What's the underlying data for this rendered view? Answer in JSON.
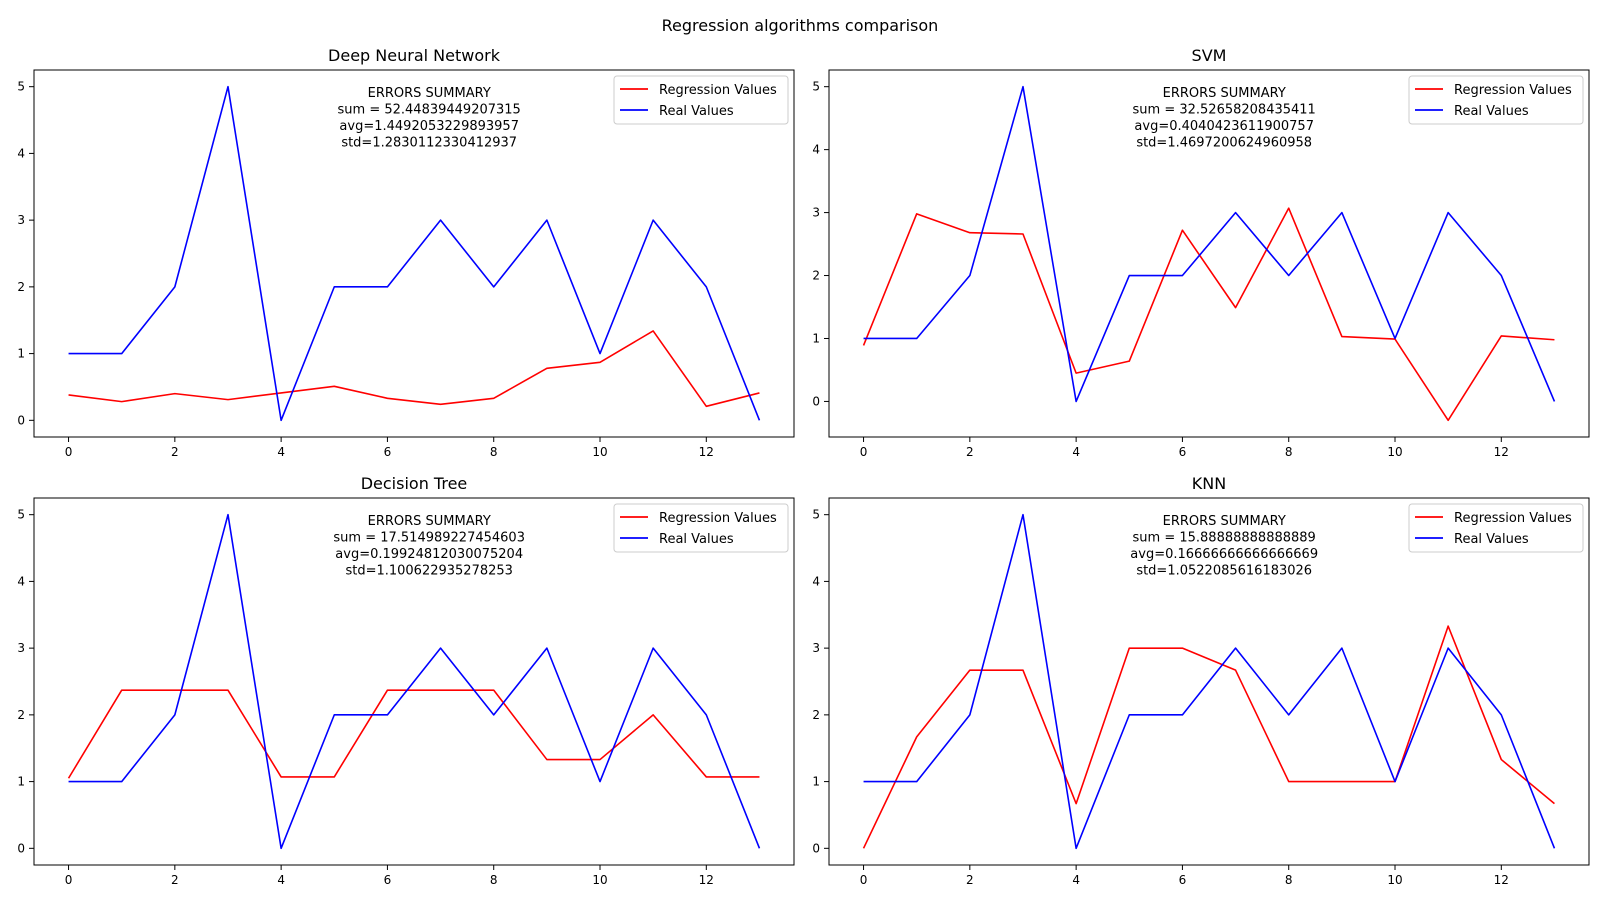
{
  "figure": {
    "suptitle": "Regression algorithms comparison"
  },
  "colors": {
    "regression": "#ff0000",
    "real": "#0000ff",
    "axes": "#000000",
    "background": "#ffffff"
  },
  "chart_data": [
    {
      "type": "line",
      "title": "Deep Neural Network",
      "x": [
        0,
        1,
        2,
        3,
        4,
        5,
        6,
        7,
        8,
        9,
        10,
        11,
        12,
        13
      ],
      "series": [
        {
          "name": "Regression Values",
          "color": "#ff0000",
          "values": [
            0.38,
            0.28,
            0.4,
            0.31,
            0.41,
            0.51,
            0.33,
            0.24,
            0.33,
            0.78,
            0.87,
            1.34,
            0.21,
            0.41
          ]
        },
        {
          "name": "Real Values",
          "color": "#0000ff",
          "values": [
            1,
            1,
            2,
            5,
            0,
            2,
            2,
            3,
            2,
            3,
            1,
            3,
            2,
            0
          ]
        }
      ],
      "xticks": [
        0,
        2,
        4,
        6,
        8,
        10,
        12
      ],
      "yticks": [
        0,
        1,
        2,
        3,
        4,
        5
      ],
      "xlim": [
        -0.65,
        13.65
      ],
      "ylim": [
        -0.25,
        5.25
      ],
      "legend": "upper-right",
      "annotation": [
        "ERRORS SUMMARY",
        "sum = 52.44839449207315",
        "avg=1.4492053229893957",
        "std=1.2830112330412937"
      ]
    },
    {
      "type": "line",
      "title": "SVM",
      "x": [
        0,
        1,
        2,
        3,
        4,
        5,
        6,
        7,
        8,
        9,
        10,
        11,
        12,
        13
      ],
      "series": [
        {
          "name": "Regression Values",
          "color": "#ff0000",
          "values": [
            0.89,
            2.98,
            2.68,
            2.66,
            0.45,
            0.64,
            2.72,
            1.49,
            3.07,
            1.03,
            0.99,
            -0.3,
            1.04,
            0.98
          ]
        },
        {
          "name": "Real Values",
          "color": "#0000ff",
          "values": [
            1,
            1,
            2,
            5,
            0,
            2,
            2,
            3,
            2,
            3,
            1,
            3,
            2,
            0
          ]
        }
      ],
      "xticks": [
        0,
        2,
        4,
        6,
        8,
        10,
        12
      ],
      "yticks": [
        0,
        1,
        2,
        3,
        4,
        5
      ],
      "xlim": [
        -0.65,
        13.65
      ],
      "ylim": [
        -0.565,
        5.265
      ],
      "legend": "upper-right",
      "annotation": [
        "ERRORS SUMMARY",
        "sum = 32.52658208435411",
        "avg=0.4040423611900757",
        "std=1.4697200624960958"
      ]
    },
    {
      "type": "line",
      "title": "Decision Tree",
      "x": [
        0,
        1,
        2,
        3,
        4,
        5,
        6,
        7,
        8,
        9,
        10,
        11,
        12,
        13
      ],
      "series": [
        {
          "name": "Regression Values",
          "color": "#ff0000",
          "values": [
            1.05,
            2.37,
            2.37,
            2.37,
            1.07,
            1.07,
            2.37,
            2.37,
            2.37,
            1.33,
            1.33,
            2.0,
            1.07,
            1.07
          ]
        },
        {
          "name": "Real Values",
          "color": "#0000ff",
          "values": [
            1,
            1,
            2,
            5,
            0,
            2,
            2,
            3,
            2,
            3,
            1,
            3,
            2,
            0
          ]
        }
      ],
      "xticks": [
        0,
        2,
        4,
        6,
        8,
        10,
        12
      ],
      "yticks": [
        0,
        1,
        2,
        3,
        4,
        5
      ],
      "xlim": [
        -0.65,
        13.65
      ],
      "ylim": [
        -0.25,
        5.25
      ],
      "legend": "upper-right",
      "annotation": [
        "ERRORS SUMMARY",
        "sum = 17.514989227454603",
        "avg=0.19924812030075204",
        "std=1.100622935278253"
      ]
    },
    {
      "type": "line",
      "title": "KNN",
      "x": [
        0,
        1,
        2,
        3,
        4,
        5,
        6,
        7,
        8,
        9,
        10,
        11,
        12,
        13
      ],
      "series": [
        {
          "name": "Regression Values",
          "color": "#ff0000",
          "values": [
            0,
            1.67,
            2.67,
            2.67,
            0.67,
            3,
            3,
            2.67,
            1,
            1,
            1,
            3.33,
            1.33,
            0.67
          ]
        },
        {
          "name": "Real Values",
          "color": "#0000ff",
          "values": [
            1,
            1,
            2,
            5,
            0,
            2,
            2,
            3,
            2,
            3,
            1,
            3,
            2,
            0
          ]
        }
      ],
      "xticks": [
        0,
        2,
        4,
        6,
        8,
        10,
        12
      ],
      "yticks": [
        0,
        1,
        2,
        3,
        4,
        5
      ],
      "xlim": [
        -0.65,
        13.65
      ],
      "ylim": [
        -0.25,
        5.25
      ],
      "legend": "upper-right",
      "annotation": [
        "ERRORS SUMMARY",
        "sum = 15.88888888888889",
        "avg=0.16666666666666669",
        "std=1.0522085616183026"
      ]
    }
  ]
}
